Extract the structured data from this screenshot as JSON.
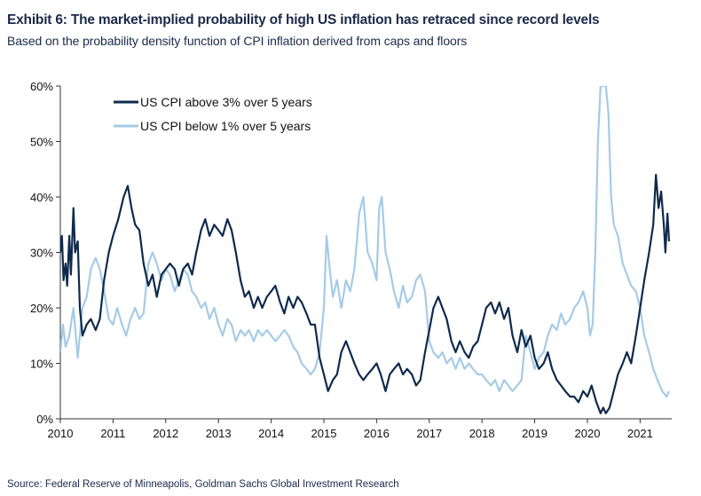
{
  "header": {
    "title": "Exhibit 6: The market-implied probability of high US inflation has retraced since record levels",
    "subtitle": "Based on the probability density function of CPI inflation derived from caps and floors"
  },
  "footer": {
    "source": "Source: Federal Reserve of Minneapolis, Goldman Sachs Global Investment Research"
  },
  "chart_data": {
    "type": "line",
    "title": "Exhibit 6: The market-implied probability of high US inflation has retraced since record levels",
    "xlabel": "",
    "ylabel": "",
    "xlim": [
      2010,
      2021.6
    ],
    "ylim": [
      0,
      60
    ],
    "x_ticks": [
      "2010",
      "2011",
      "2012",
      "2013",
      "2014",
      "2015",
      "2016",
      "2017",
      "2018",
      "2019",
      "2020",
      "2021"
    ],
    "y_ticks": [
      "0%",
      "10%",
      "20%",
      "30%",
      "40%",
      "50%",
      "60%"
    ],
    "y_tick_values": [
      0,
      10,
      20,
      30,
      40,
      50,
      60
    ],
    "legend_position": "top-left",
    "grid": false,
    "series": [
      {
        "name": "US CPI above 3% over 5 years",
        "color": "#0e2a4c",
        "points": [
          [
            2010.0,
            30
          ],
          [
            2010.03,
            33
          ],
          [
            2010.06,
            25
          ],
          [
            2010.1,
            28
          ],
          [
            2010.13,
            24
          ],
          [
            2010.17,
            33
          ],
          [
            2010.2,
            26
          ],
          [
            2010.25,
            38
          ],
          [
            2010.28,
            30
          ],
          [
            2010.33,
            32
          ],
          [
            2010.37,
            20
          ],
          [
            2010.42,
            15
          ],
          [
            2010.5,
            17
          ],
          [
            2010.58,
            18
          ],
          [
            2010.67,
            16
          ],
          [
            2010.75,
            18
          ],
          [
            2010.83,
            25
          ],
          [
            2010.92,
            30
          ],
          [
            2011.0,
            33
          ],
          [
            2011.1,
            36
          ],
          [
            2011.2,
            40
          ],
          [
            2011.28,
            42
          ],
          [
            2011.35,
            38
          ],
          [
            2011.42,
            35
          ],
          [
            2011.5,
            34
          ],
          [
            2011.58,
            28
          ],
          [
            2011.67,
            24
          ],
          [
            2011.75,
            26
          ],
          [
            2011.83,
            22
          ],
          [
            2011.92,
            26
          ],
          [
            2012.0,
            27
          ],
          [
            2012.08,
            28
          ],
          [
            2012.17,
            27
          ],
          [
            2012.25,
            24
          ],
          [
            2012.33,
            27
          ],
          [
            2012.42,
            28
          ],
          [
            2012.5,
            26
          ],
          [
            2012.58,
            30
          ],
          [
            2012.67,
            34
          ],
          [
            2012.75,
            36
          ],
          [
            2012.83,
            33
          ],
          [
            2012.92,
            35
          ],
          [
            2013.0,
            34
          ],
          [
            2013.08,
            33
          ],
          [
            2013.17,
            36
          ],
          [
            2013.25,
            34
          ],
          [
            2013.33,
            30
          ],
          [
            2013.42,
            25
          ],
          [
            2013.5,
            22
          ],
          [
            2013.58,
            23
          ],
          [
            2013.67,
            20
          ],
          [
            2013.75,
            22
          ],
          [
            2013.83,
            20
          ],
          [
            2013.92,
            22
          ],
          [
            2014.0,
            23
          ],
          [
            2014.08,
            24
          ],
          [
            2014.17,
            21
          ],
          [
            2014.25,
            19
          ],
          [
            2014.33,
            22
          ],
          [
            2014.42,
            20
          ],
          [
            2014.5,
            22
          ],
          [
            2014.58,
            21
          ],
          [
            2014.67,
            19
          ],
          [
            2014.75,
            17
          ],
          [
            2014.83,
            17
          ],
          [
            2014.92,
            11
          ],
          [
            2015.0,
            8
          ],
          [
            2015.08,
            5
          ],
          [
            2015.17,
            7
          ],
          [
            2015.25,
            8
          ],
          [
            2015.33,
            12
          ],
          [
            2015.42,
            14
          ],
          [
            2015.5,
            12
          ],
          [
            2015.58,
            10
          ],
          [
            2015.67,
            8
          ],
          [
            2015.75,
            7
          ],
          [
            2015.83,
            8
          ],
          [
            2015.92,
            9
          ],
          [
            2016.0,
            10
          ],
          [
            2016.08,
            8
          ],
          [
            2016.17,
            5
          ],
          [
            2016.25,
            8
          ],
          [
            2016.33,
            9
          ],
          [
            2016.42,
            10
          ],
          [
            2016.5,
            8
          ],
          [
            2016.58,
            9
          ],
          [
            2016.67,
            8
          ],
          [
            2016.75,
            6
          ],
          [
            2016.83,
            7
          ],
          [
            2016.92,
            12
          ],
          [
            2017.0,
            16
          ],
          [
            2017.08,
            20
          ],
          [
            2017.17,
            22
          ],
          [
            2017.25,
            20
          ],
          [
            2017.33,
            18
          ],
          [
            2017.42,
            14
          ],
          [
            2017.5,
            12
          ],
          [
            2017.58,
            14
          ],
          [
            2017.67,
            12
          ],
          [
            2017.75,
            11
          ],
          [
            2017.83,
            13
          ],
          [
            2017.92,
            14
          ],
          [
            2018.0,
            17
          ],
          [
            2018.08,
            20
          ],
          [
            2018.17,
            21
          ],
          [
            2018.25,
            19
          ],
          [
            2018.33,
            21
          ],
          [
            2018.42,
            18
          ],
          [
            2018.5,
            20
          ],
          [
            2018.58,
            15
          ],
          [
            2018.67,
            12
          ],
          [
            2018.75,
            16
          ],
          [
            2018.83,
            13
          ],
          [
            2018.92,
            15
          ],
          [
            2019.0,
            11
          ],
          [
            2019.08,
            9
          ],
          [
            2019.17,
            10
          ],
          [
            2019.25,
            12
          ],
          [
            2019.33,
            9
          ],
          [
            2019.42,
            7
          ],
          [
            2019.5,
            6
          ],
          [
            2019.58,
            5
          ],
          [
            2019.67,
            4
          ],
          [
            2019.75,
            4
          ],
          [
            2019.83,
            3
          ],
          [
            2019.92,
            5
          ],
          [
            2020.0,
            4
          ],
          [
            2020.08,
            6
          ],
          [
            2020.17,
            3
          ],
          [
            2020.25,
            1
          ],
          [
            2020.3,
            2
          ],
          [
            2020.35,
            1
          ],
          [
            2020.42,
            2
          ],
          [
            2020.5,
            5
          ],
          [
            2020.58,
            8
          ],
          [
            2020.67,
            10
          ],
          [
            2020.75,
            12
          ],
          [
            2020.83,
            10
          ],
          [
            2020.92,
            15
          ],
          [
            2021.0,
            20
          ],
          [
            2021.08,
            25
          ],
          [
            2021.17,
            30
          ],
          [
            2021.25,
            35
          ],
          [
            2021.3,
            44
          ],
          [
            2021.35,
            38
          ],
          [
            2021.4,
            41
          ],
          [
            2021.45,
            35
          ],
          [
            2021.48,
            30
          ],
          [
            2021.52,
            37
          ],
          [
            2021.55,
            32
          ]
        ]
      },
      {
        "name": "US CPI below 1% over 5 years",
        "color": "#a6cbe6",
        "points": [
          [
            2010.0,
            12
          ],
          [
            2010.05,
            17
          ],
          [
            2010.1,
            13
          ],
          [
            2010.17,
            15
          ],
          [
            2010.25,
            20
          ],
          [
            2010.33,
            11
          ],
          [
            2010.42,
            20
          ],
          [
            2010.5,
            22
          ],
          [
            2010.58,
            27
          ],
          [
            2010.67,
            29
          ],
          [
            2010.75,
            27
          ],
          [
            2010.83,
            23
          ],
          [
            2010.92,
            18
          ],
          [
            2011.0,
            17
          ],
          [
            2011.08,
            20
          ],
          [
            2011.17,
            17
          ],
          [
            2011.25,
            15
          ],
          [
            2011.33,
            18
          ],
          [
            2011.42,
            20
          ],
          [
            2011.5,
            18
          ],
          [
            2011.58,
            19
          ],
          [
            2011.67,
            28
          ],
          [
            2011.75,
            30
          ],
          [
            2011.83,
            28
          ],
          [
            2011.92,
            25
          ],
          [
            2012.0,
            27
          ],
          [
            2012.08,
            26
          ],
          [
            2012.17,
            23
          ],
          [
            2012.25,
            25
          ],
          [
            2012.33,
            27
          ],
          [
            2012.42,
            26
          ],
          [
            2012.5,
            23
          ],
          [
            2012.58,
            22
          ],
          [
            2012.67,
            20
          ],
          [
            2012.75,
            21
          ],
          [
            2012.83,
            18
          ],
          [
            2012.92,
            20
          ],
          [
            2013.0,
            17
          ],
          [
            2013.08,
            15
          ],
          [
            2013.17,
            18
          ],
          [
            2013.25,
            17
          ],
          [
            2013.33,
            14
          ],
          [
            2013.42,
            16
          ],
          [
            2013.5,
            15
          ],
          [
            2013.58,
            16
          ],
          [
            2013.67,
            14
          ],
          [
            2013.75,
            16
          ],
          [
            2013.83,
            15
          ],
          [
            2013.92,
            16
          ],
          [
            2014.0,
            15
          ],
          [
            2014.08,
            14
          ],
          [
            2014.17,
            15
          ],
          [
            2014.25,
            16
          ],
          [
            2014.33,
            15
          ],
          [
            2014.42,
            13
          ],
          [
            2014.5,
            12
          ],
          [
            2014.58,
            10
          ],
          [
            2014.67,
            9
          ],
          [
            2014.75,
            8
          ],
          [
            2014.83,
            9
          ],
          [
            2014.92,
            12
          ],
          [
            2015.0,
            20
          ],
          [
            2015.05,
            33
          ],
          [
            2015.1,
            28
          ],
          [
            2015.17,
            22
          ],
          [
            2015.25,
            25
          ],
          [
            2015.33,
            20
          ],
          [
            2015.42,
            25
          ],
          [
            2015.5,
            23
          ],
          [
            2015.58,
            27
          ],
          [
            2015.67,
            37
          ],
          [
            2015.75,
            40
          ],
          [
            2015.83,
            30
          ],
          [
            2015.92,
            28
          ],
          [
            2016.0,
            25
          ],
          [
            2016.05,
            38
          ],
          [
            2016.1,
            40
          ],
          [
            2016.17,
            30
          ],
          [
            2016.25,
            27
          ],
          [
            2016.33,
            23
          ],
          [
            2016.42,
            20
          ],
          [
            2016.5,
            24
          ],
          [
            2016.58,
            21
          ],
          [
            2016.67,
            22
          ],
          [
            2016.75,
            25
          ],
          [
            2016.83,
            26
          ],
          [
            2016.92,
            23
          ],
          [
            2017.0,
            14
          ],
          [
            2017.08,
            12
          ],
          [
            2017.17,
            11
          ],
          [
            2017.25,
            12
          ],
          [
            2017.33,
            10
          ],
          [
            2017.42,
            11
          ],
          [
            2017.5,
            9
          ],
          [
            2017.58,
            11
          ],
          [
            2017.67,
            9
          ],
          [
            2017.75,
            10
          ],
          [
            2017.83,
            9
          ],
          [
            2017.92,
            8
          ],
          [
            2018.0,
            8
          ],
          [
            2018.08,
            7
          ],
          [
            2018.17,
            6
          ],
          [
            2018.25,
            7
          ],
          [
            2018.33,
            5
          ],
          [
            2018.42,
            7
          ],
          [
            2018.5,
            6
          ],
          [
            2018.58,
            5
          ],
          [
            2018.67,
            6
          ],
          [
            2018.75,
            7
          ],
          [
            2018.83,
            15
          ],
          [
            2018.92,
            12
          ],
          [
            2019.0,
            9
          ],
          [
            2019.08,
            11
          ],
          [
            2019.17,
            12
          ],
          [
            2019.25,
            15
          ],
          [
            2019.33,
            17
          ],
          [
            2019.42,
            16
          ],
          [
            2019.5,
            19
          ],
          [
            2019.58,
            17
          ],
          [
            2019.67,
            18
          ],
          [
            2019.75,
            20
          ],
          [
            2019.83,
            21
          ],
          [
            2019.92,
            23
          ],
          [
            2020.0,
            20
          ],
          [
            2020.05,
            15
          ],
          [
            2020.1,
            17
          ],
          [
            2020.15,
            30
          ],
          [
            2020.2,
            50
          ],
          [
            2020.25,
            60
          ],
          [
            2020.3,
            60
          ],
          [
            2020.35,
            60
          ],
          [
            2020.4,
            55
          ],
          [
            2020.45,
            40
          ],
          [
            2020.5,
            35
          ],
          [
            2020.58,
            33
          ],
          [
            2020.67,
            28
          ],
          [
            2020.75,
            26
          ],
          [
            2020.83,
            24
          ],
          [
            2020.92,
            23
          ],
          [
            2021.0,
            20
          ],
          [
            2021.08,
            15
          ],
          [
            2021.17,
            12
          ],
          [
            2021.25,
            9
          ],
          [
            2021.33,
            7
          ],
          [
            2021.42,
            5
          ],
          [
            2021.5,
            4
          ],
          [
            2021.55,
            5
          ]
        ]
      }
    ]
  }
}
